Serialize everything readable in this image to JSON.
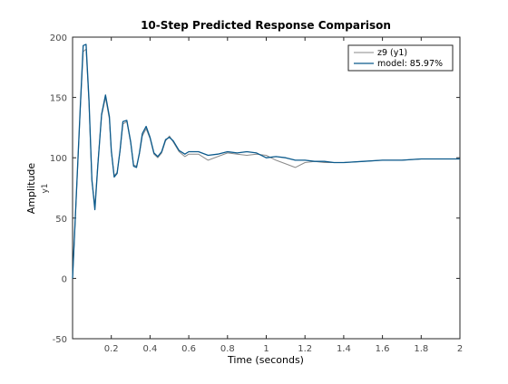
{
  "chart_data": {
    "type": "line",
    "title": "10-Step Predicted Response Comparison",
    "xlabel": "Time (seconds)",
    "ylabel": "Amplitude",
    "ylabel_sub": "y1",
    "xlim": [
      0,
      2
    ],
    "ylim": [
      -50,
      200
    ],
    "xticks": [
      0.2,
      0.4,
      0.6,
      0.8,
      1,
      1.2,
      1.4,
      1.6,
      1.8,
      2
    ],
    "yticks": [
      -50,
      0,
      50,
      100,
      150,
      200
    ],
    "grid": false,
    "legend_position": "top-right",
    "series": [
      {
        "name": "z9 (y1)",
        "color": "#8a8a8a",
        "x": [
          0.0,
          0.02,
          0.04,
          0.055,
          0.07,
          0.085,
          0.1,
          0.115,
          0.13,
          0.15,
          0.17,
          0.19,
          0.2,
          0.215,
          0.23,
          0.245,
          0.26,
          0.28,
          0.3,
          0.315,
          0.33,
          0.345,
          0.36,
          0.38,
          0.4,
          0.42,
          0.44,
          0.46,
          0.48,
          0.5,
          0.52,
          0.55,
          0.58,
          0.6,
          0.65,
          0.7,
          0.75,
          0.8,
          0.85,
          0.9,
          0.95,
          1.0,
          1.05,
          1.1,
          1.15,
          1.2,
          1.25,
          1.3,
          1.35,
          1.4,
          1.5,
          1.6,
          1.7,
          1.8,
          1.9,
          2.0
        ],
        "y": [
          0,
          70,
          140,
          188,
          190,
          145,
          80,
          60,
          95,
          135,
          150,
          132,
          105,
          85,
          88,
          105,
          128,
          130,
          112,
          94,
          93,
          103,
          118,
          124,
          116,
          103,
          100,
          104,
          114,
          118,
          113,
          105,
          101,
          103,
          103,
          98,
          101,
          104,
          103,
          102,
          103,
          102,
          98,
          95,
          92,
          96,
          97,
          96,
          96,
          96,
          97,
          98,
          98,
          99,
          99,
          99
        ]
      },
      {
        "name": "model: 85.97%",
        "color": "#0b5a8c",
        "x": [
          0.0,
          0.02,
          0.04,
          0.055,
          0.07,
          0.085,
          0.1,
          0.115,
          0.13,
          0.15,
          0.17,
          0.19,
          0.2,
          0.215,
          0.23,
          0.245,
          0.26,
          0.28,
          0.3,
          0.315,
          0.33,
          0.345,
          0.36,
          0.38,
          0.4,
          0.42,
          0.44,
          0.46,
          0.48,
          0.5,
          0.52,
          0.55,
          0.58,
          0.6,
          0.65,
          0.7,
          0.75,
          0.8,
          0.85,
          0.9,
          0.95,
          1.0,
          1.05,
          1.1,
          1.15,
          1.2,
          1.25,
          1.3,
          1.35,
          1.4,
          1.5,
          1.6,
          1.7,
          1.8,
          1.9,
          2.0
        ],
        "y": [
          0,
          72,
          142,
          193,
          194,
          148,
          82,
          57,
          93,
          136,
          152,
          134,
          106,
          84,
          87,
          106,
          130,
          131,
          113,
          93,
          92,
          104,
          120,
          126,
          117,
          104,
          101,
          105,
          115,
          117,
          114,
          106,
          103,
          105,
          105,
          102,
          103,
          105,
          104,
          105,
          104,
          100,
          101,
          100,
          98,
          98,
          97,
          97,
          96,
          96,
          97,
          98,
          98,
          99,
          99,
          99
        ]
      }
    ]
  }
}
